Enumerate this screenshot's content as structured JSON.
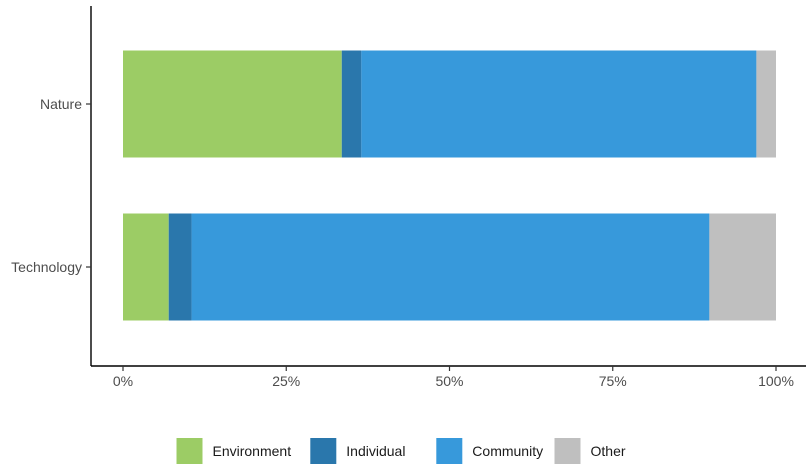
{
  "chart_data": {
    "type": "bar",
    "orientation": "horizontal",
    "stacked": true,
    "categories": [
      "Nature",
      "Technology"
    ],
    "series": [
      {
        "name": "Environment",
        "color": "#9ccc65",
        "values": [
          33.5,
          7.0
        ]
      },
      {
        "name": "Individual",
        "color": "#2a77ac",
        "values": [
          3.0,
          3.5
        ]
      },
      {
        "name": "Community",
        "color": "#3799db",
        "values": [
          60.5,
          79.3
        ]
      },
      {
        "name": "Other",
        "color": "#bfbfbf",
        "values": [
          3.0,
          10.2
        ]
      }
    ],
    "x_ticks": [
      0,
      25,
      50,
      75,
      100
    ],
    "x_tick_labels": [
      "0%",
      "25%",
      "50%",
      "75%",
      "100%"
    ],
    "xlim": [
      0,
      100
    ],
    "title": "",
    "xlabel": "",
    "ylabel": "",
    "grid": false,
    "legend_position": "bottom"
  }
}
